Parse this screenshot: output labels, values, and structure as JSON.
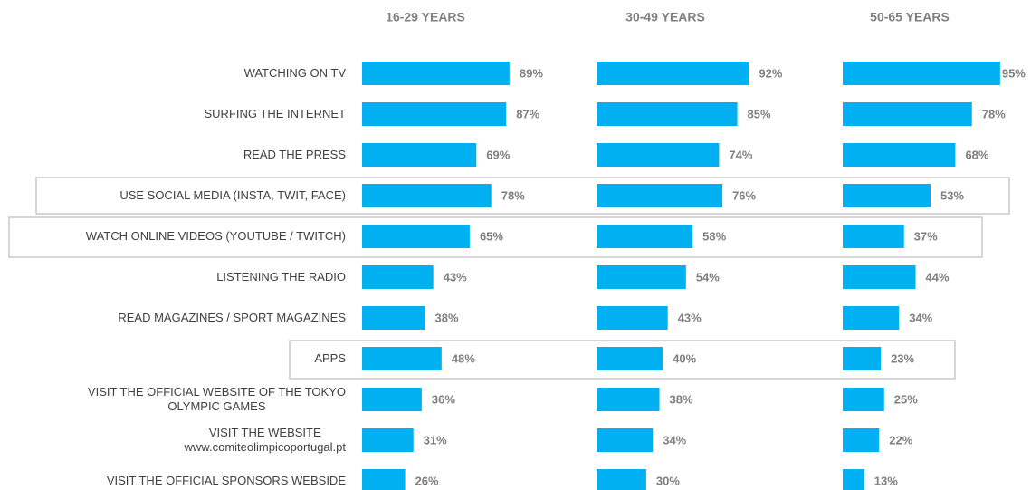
{
  "chart_data": {
    "type": "bar",
    "categories": [
      "WATCHING ON TV",
      "SURFING THE INTERNET",
      "READ THE PRESS",
      "USE SOCIAL MEDIA (INSTA, TWIT, FACE)",
      "WATCH ONLINE VIDEOS  (YOUTUBE / TWITCH)",
      "LISTENING THE RADIO",
      "READ MAGAZINES / SPORT MAGAZINES",
      "APPS",
      "VISIT THE OFFICIAL WEBSITE OF THE TOKYO\nOLYMPIC GAMES",
      "VISIT THE WEBSITE\nwww.comiteolimpicoportugal.pt",
      "VISIT THE OFFICIAL SPONSORS WEBSIDE"
    ],
    "series": [
      {
        "name": "16-29 YEARS",
        "color": "#00b0f0",
        "values": [
          89,
          87,
          69,
          78,
          65,
          43,
          38,
          48,
          36,
          31,
          26
        ],
        "value_labels": [
          "89%",
          "87%",
          "69%",
          "78%",
          "65%",
          "43%",
          "38%",
          "48%",
          "36%",
          "31%",
          "26%"
        ]
      },
      {
        "name": "30-49 YEARS",
        "color": "#00b0f0",
        "values": [
          92,
          85,
          74,
          76,
          58,
          54,
          43,
          40,
          38,
          34,
          30
        ],
        "value_labels": [
          "92%",
          "85%",
          "74%",
          "76%",
          "58%",
          "54%",
          "43%",
          "40%",
          "38%",
          "34%",
          "30%"
        ]
      },
      {
        "name": "50-65 YEARS",
        "color": "#00b0f0",
        "values": [
          95,
          78,
          68,
          53,
          37,
          44,
          34,
          23,
          25,
          22,
          13
        ],
        "value_labels": [
          "95%",
          "78%",
          "68%",
          "53%",
          "37%",
          "44%",
          "34%",
          "23%",
          "25%",
          "22%",
          "13%"
        ]
      }
    ]
  }
}
